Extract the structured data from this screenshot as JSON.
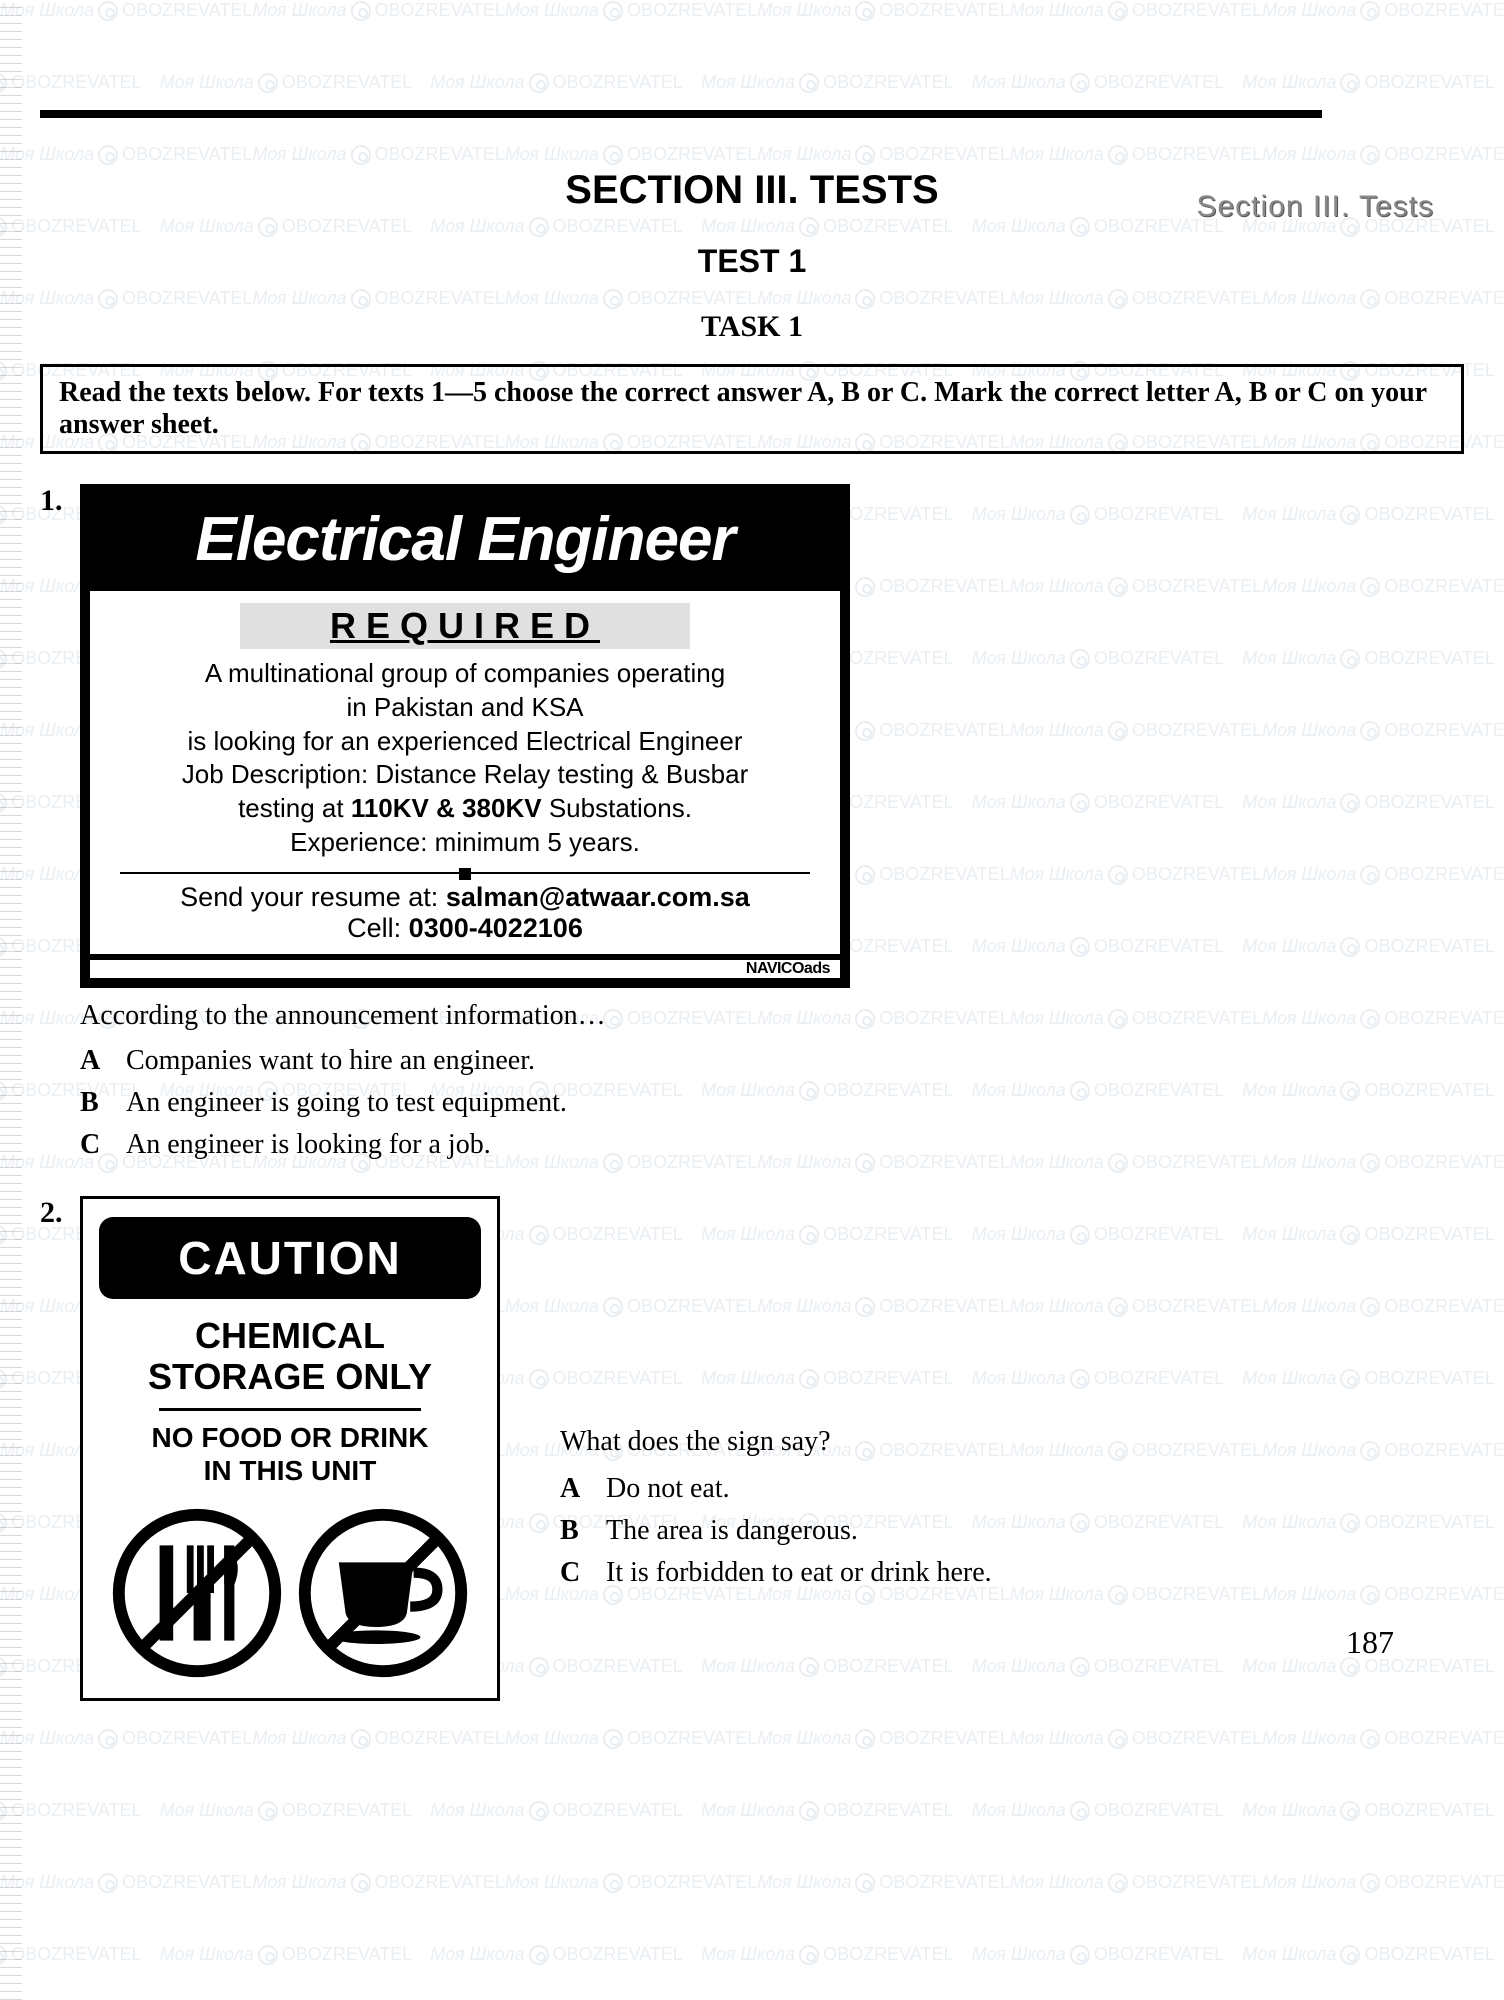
{
  "header": {
    "right_label": "Section III. Tests",
    "section_title": "SECTION III. TESTS",
    "test_label": "TEST 1",
    "task_label": "TASK 1"
  },
  "instructions": "Read the texts below. For texts 1—5 choose the correct answer A, B or C. Mark the correct letter A, B or C on your answer sheet.",
  "q1": {
    "num": "1.",
    "ad": {
      "title": "Electrical Engineer",
      "required": "REQUIRED",
      "line1": "A multinational group of companies operating",
      "line2": "in Pakistan and KSA",
      "line3": "is looking for an experienced Electrical Engineer",
      "line4": "Job Description: Distance Relay testing & Busbar",
      "line5_pre": "testing at ",
      "line5_bold": "110KV & 380KV",
      "line5_post": " Substations.",
      "line6": "Experience: minimum 5 years.",
      "contact_pre": "Send your resume at: ",
      "contact_email": "salman@atwaar.com.sa",
      "cell_pre": "Cell: ",
      "cell_num": "0300-4022106",
      "footer": "NAVICOads"
    },
    "question": "According to the announcement information…",
    "options": {
      "A": "Companies want to hire an engineer.",
      "B": "An engineer is going to test equipment.",
      "C": "An engineer is looking for a job."
    }
  },
  "q2": {
    "num": "2.",
    "sign": {
      "caution": "CAUTION",
      "main1": "CHEMICAL",
      "main2": "STORAGE ONLY",
      "sub1": "NO FOOD OR DRINK",
      "sub2": "IN THIS UNIT"
    },
    "question": "What does the sign say?",
    "options": {
      "A": "Do not eat.",
      "B": "The area is dangerous.",
      "C": "It is forbidden to eat or drink here."
    }
  },
  "page_number": "187",
  "watermark": {
    "text1": "Моя Школа",
    "text2": "OBOZREVATEL"
  },
  "style": {
    "colors": {
      "black": "#000000",
      "white": "#ffffff",
      "watermark": "#7090b0",
      "required_bg": "#e0e0e0",
      "header_gray": "#888888"
    }
  }
}
